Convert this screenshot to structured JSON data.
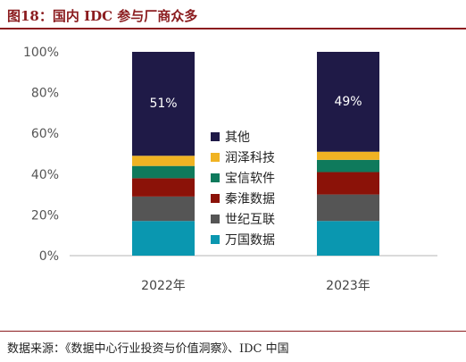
{
  "figure": {
    "title": "图18：国内 IDC 参与厂商众多",
    "source": "数据来源：《数据中心行业投资与价值洞察》、IDC 中国"
  },
  "chart_data": {
    "type": "bar",
    "stacked": true,
    "categories": [
      "2022年",
      "2023年"
    ],
    "ylim": [
      0,
      100
    ],
    "yticks": [
      0,
      20,
      40,
      60,
      80,
      100
    ],
    "ytick_labels": [
      "0%",
      "20%",
      "40%",
      "60%",
      "80%",
      "100%"
    ],
    "legend_position": "center",
    "series": [
      {
        "name": "万国数据",
        "color": "#0a97b0",
        "values": [
          17,
          17
        ]
      },
      {
        "name": "世纪互联",
        "color": "#555555",
        "values": [
          12,
          13
        ]
      },
      {
        "name": "秦淮数据",
        "color": "#8b1208",
        "values": [
          9,
          11
        ]
      },
      {
        "name": "宝信软件",
        "color": "#0f7a5c",
        "values": [
          6,
          6
        ]
      },
      {
        "name": "润泽科技",
        "color": "#f0b323",
        "values": [
          5,
          4
        ]
      },
      {
        "name": "其他",
        "color": "#1f1a47",
        "values": [
          51,
          49
        ],
        "labels": [
          "51%",
          "49%"
        ]
      }
    ]
  }
}
